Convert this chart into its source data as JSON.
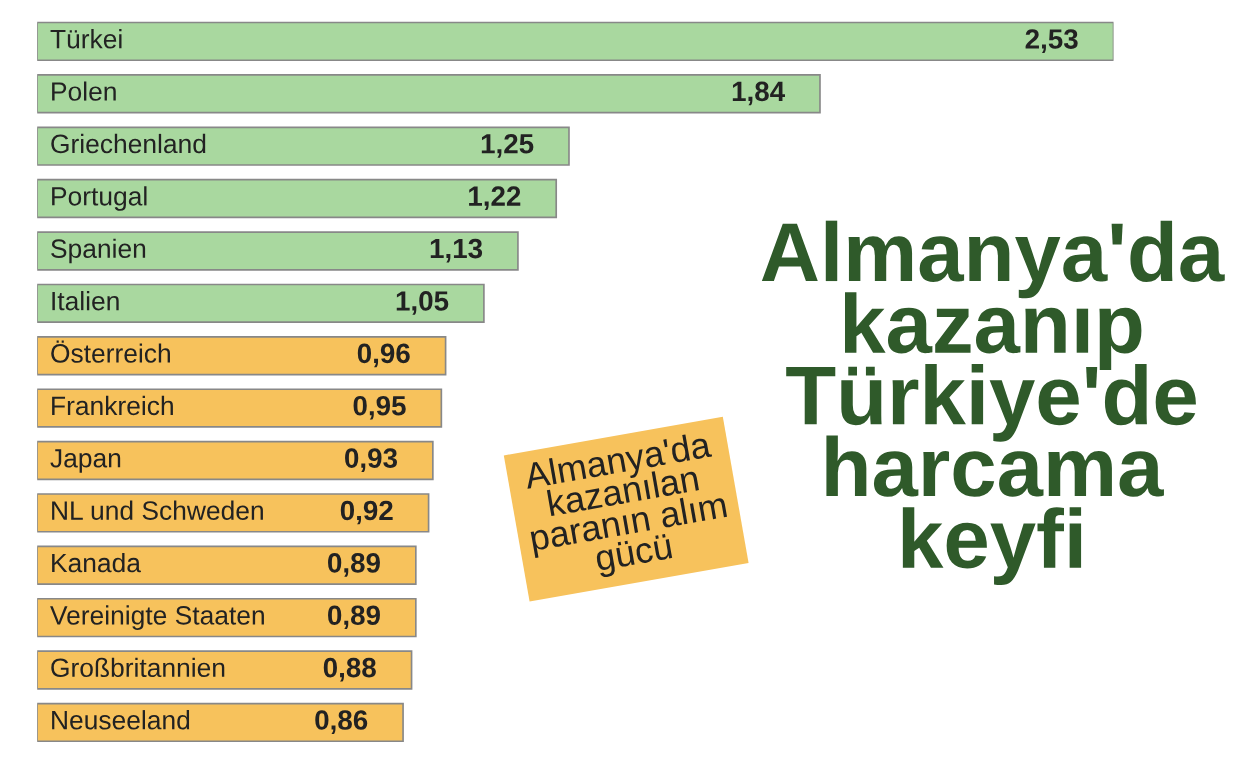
{
  "chart_data": {
    "type": "bar",
    "orientation": "horizontal",
    "title": "Almanya'da kazanıp Türkiye'de harcama keyfi",
    "subtitle": "Almanya'da kazanılan paranın alım gücü",
    "categories": [
      "Türkei",
      "Polen",
      "Griechenland",
      "Portugal",
      "Spanien",
      "Italien",
      "Österreich",
      "Frankreich",
      "Japan",
      "NL und Schweden",
      "Kanada",
      "Vereinigte Staaten",
      "Großbritannien",
      "Neuseeland"
    ],
    "values": [
      2.53,
      1.84,
      1.25,
      1.22,
      1.13,
      1.05,
      0.96,
      0.95,
      0.93,
      0.92,
      0.89,
      0.89,
      0.88,
      0.86
    ],
    "value_labels": [
      "2,53",
      "1,84",
      "1,25",
      "1,22",
      "1,13",
      "1,05",
      "0,96",
      "0,95",
      "0,93",
      "0,92",
      "0,89",
      "0,89",
      "0,88",
      "0,86"
    ],
    "colors": [
      "#a9d89f",
      "#a9d89f",
      "#a9d89f",
      "#a9d89f",
      "#a9d89f",
      "#a9d89f",
      "#f7c25c",
      "#f7c25c",
      "#f7c25c",
      "#f7c25c",
      "#f7c25c",
      "#f7c25c",
      "#f7c25c",
      "#f7c25c"
    ],
    "legend": false
  }
}
